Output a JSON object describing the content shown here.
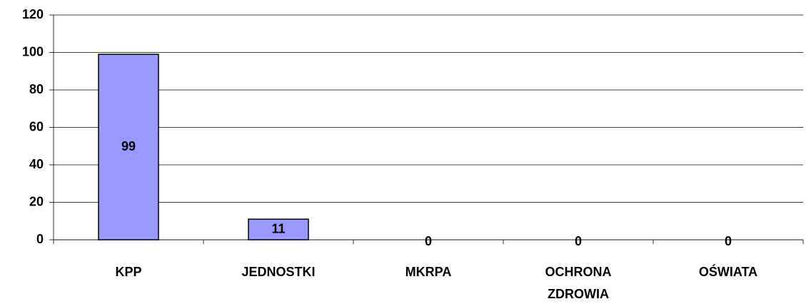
{
  "chart_data": {
    "type": "bar",
    "categories": [
      "KPP",
      "JEDNOSTKI",
      "MKRPA",
      "OCHRONA ZDROWIA",
      "OŚWIATA"
    ],
    "values": [
      99,
      11,
      0,
      0,
      0
    ],
    "color": "#9999ff",
    "ylim": [
      0,
      120
    ],
    "yticks": [
      0,
      20,
      40,
      60,
      80,
      100,
      120
    ],
    "grid": true
  }
}
